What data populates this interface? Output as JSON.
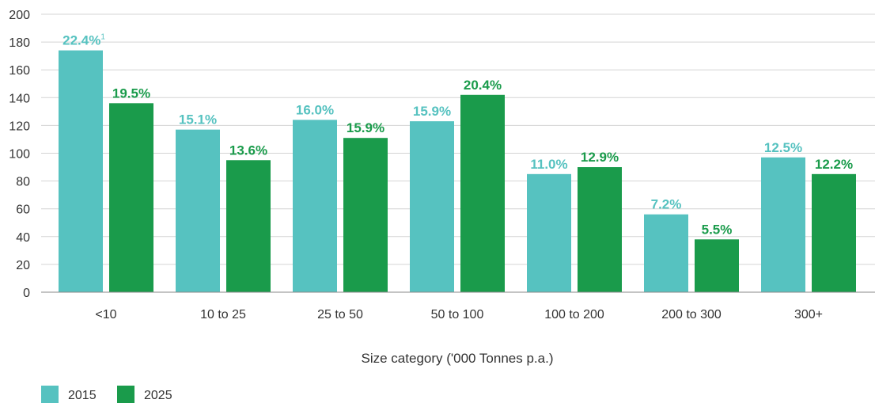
{
  "chart_data": {
    "type": "bar",
    "categories": [
      "<10",
      "10 to 25",
      "25 to 50",
      "50 to 100",
      "100 to 200",
      "200 to 300",
      "300+"
    ],
    "series": [
      {
        "name": "2015",
        "color": "#56c2c0",
        "values": [
          174,
          117,
          124,
          123,
          85,
          56,
          97
        ],
        "labels": [
          "22.4%",
          "15.1%",
          "16.0%",
          "15.9%",
          "11.0%",
          "7.2%",
          "12.5%"
        ],
        "label_superscripts": [
          "1",
          "",
          "",
          "",
          "",
          "",
          ""
        ]
      },
      {
        "name": "2025",
        "color": "#1a9b4b",
        "values": [
          136,
          95,
          111,
          142,
          90,
          38,
          85
        ],
        "labels": [
          "19.5%",
          "13.6%",
          "15.9%",
          "20.4%",
          "12.9%",
          "5.5%",
          "12.2%"
        ],
        "label_superscripts": [
          "",
          "",
          "",
          "",
          "",
          "",
          ""
        ]
      }
    ],
    "xlabel": "Size category ('000 Tonnes p.a.)",
    "ylabel": "",
    "ylim": [
      0,
      200
    ],
    "yticks": [
      "0",
      "20",
      "40",
      "60",
      "80",
      "100",
      "120",
      "140",
      "160",
      "180",
      "200"
    ],
    "grid": true,
    "legend": "bottom-left"
  }
}
